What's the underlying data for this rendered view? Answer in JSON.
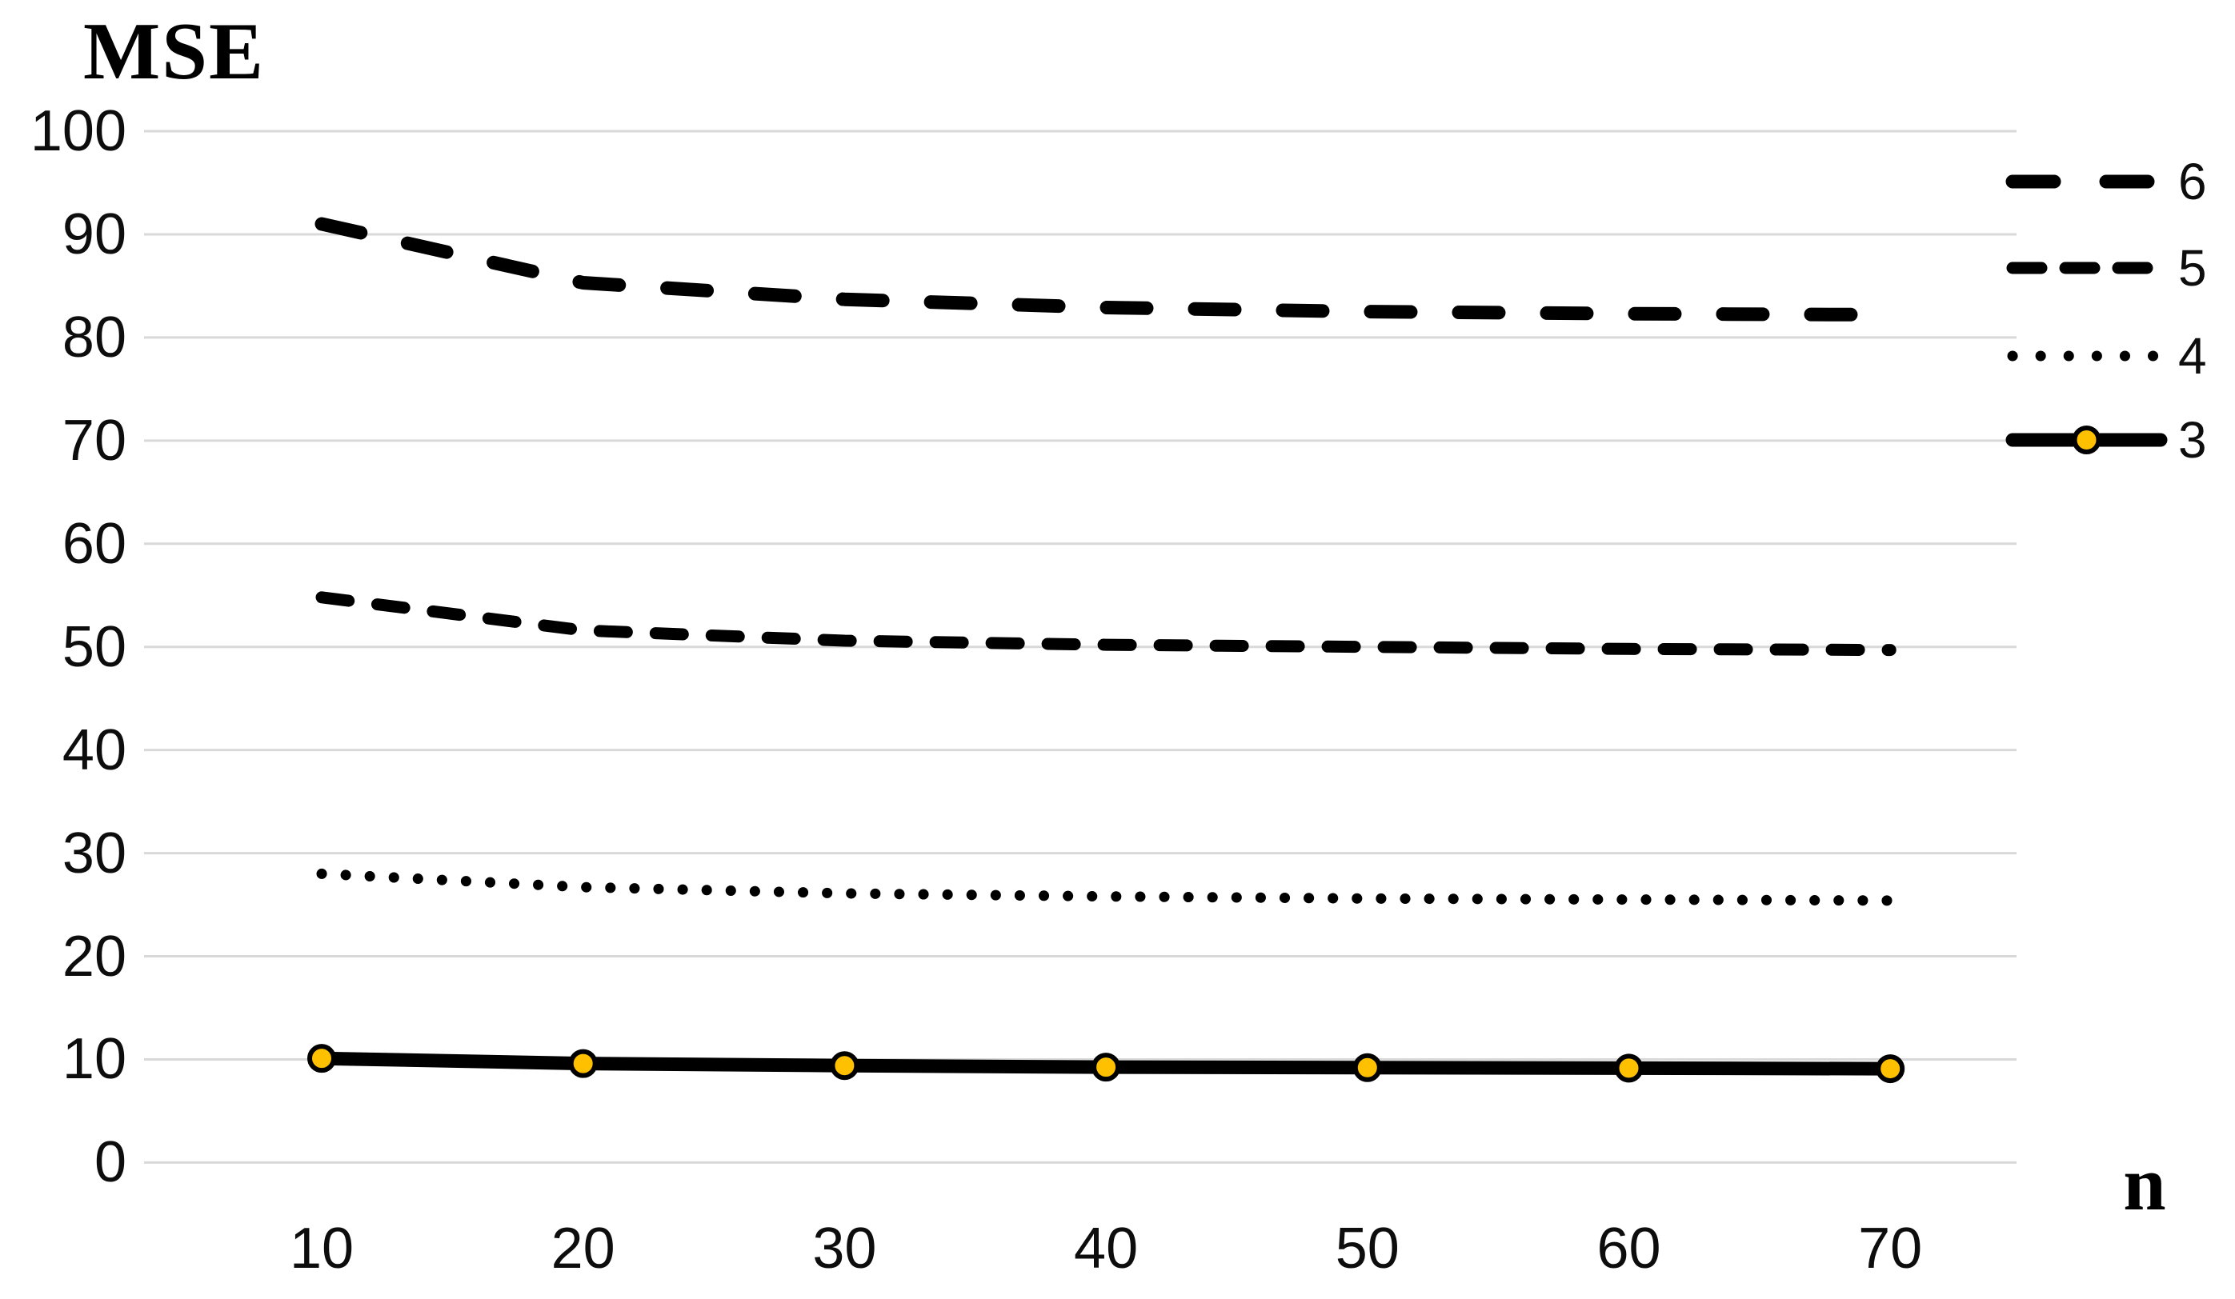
{
  "chart_data": {
    "type": "line",
    "title": "",
    "xlabel": "n",
    "ylabel": "MSE",
    "x": [
      10,
      20,
      30,
      40,
      50,
      60,
      70
    ],
    "xticks": [
      10,
      20,
      30,
      40,
      50,
      60,
      70
    ],
    "yticks": [
      0,
      10,
      20,
      30,
      40,
      50,
      60,
      70,
      80,
      90,
      100
    ],
    "ylim": [
      0,
      100
    ],
    "xlim_ticks": [
      10,
      70
    ],
    "grid": "horizontal-only",
    "gridline_color": "#D9D9D9",
    "background_color": "#FFFFFF",
    "legend_position": "right",
    "series": [
      {
        "name": "6",
        "style": "long-dash",
        "color": "#000000",
        "values": [
          91.0,
          85.3,
          83.7,
          82.9,
          82.5,
          82.3,
          82.2
        ]
      },
      {
        "name": "5",
        "style": "dash",
        "color": "#000000",
        "values": [
          54.8,
          51.6,
          50.6,
          50.2,
          50.0,
          49.8,
          49.7
        ]
      },
      {
        "name": "4",
        "style": "dotted",
        "color": "#000000",
        "values": [
          28.0,
          26.7,
          26.1,
          25.8,
          25.6,
          25.5,
          25.4
        ]
      },
      {
        "name": "3",
        "style": "solid-marker",
        "color": "#000000",
        "marker": {
          "shape": "circle",
          "fill": "#FFC000",
          "stroke": "#000000"
        },
        "values": [
          10.1,
          9.6,
          9.4,
          9.25,
          9.2,
          9.15,
          9.1
        ]
      }
    ]
  }
}
